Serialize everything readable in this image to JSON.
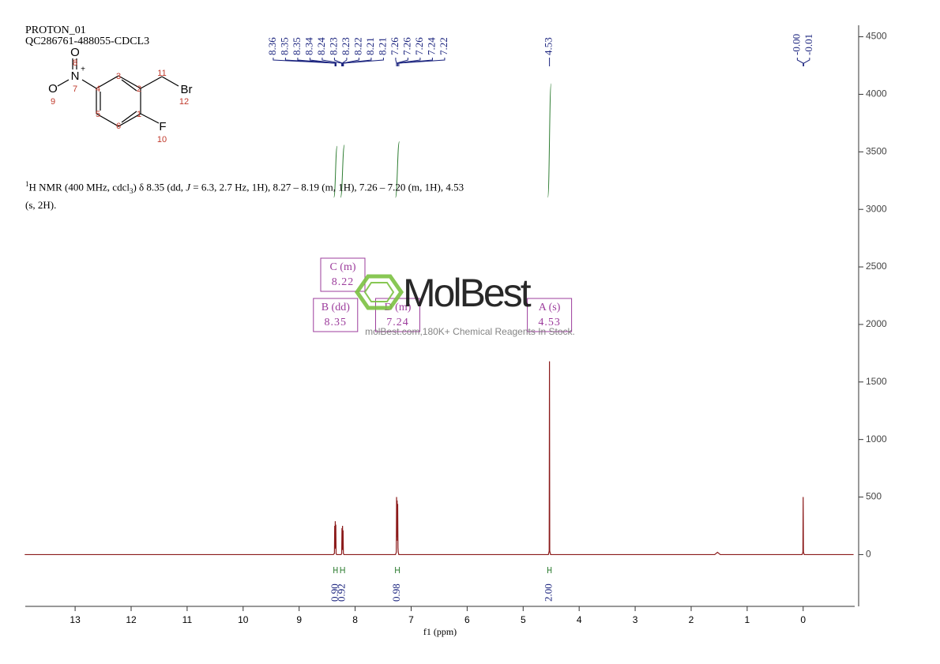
{
  "chart_data": {
    "type": "nmr",
    "title": "PROTON_01",
    "subtitle": "QC286761-488055-CDCL3",
    "description": [
      "1",
      "H NMR (400 MHz, cdcl",
      "3",
      ") δ 8.35 (dd, ",
      "J",
      " = 6.3, 2.7 Hz, 1H), 8.27 – 8.19 (m, 1H), 7.26 – 7.20 (m, 1H), 4.53 (s, 2H)."
    ],
    "x_label": "f1 (ppm)",
    "xlim": [
      13.89,
      -0.92
    ],
    "xticks": [
      13,
      12,
      11,
      10,
      9,
      8,
      7,
      6,
      5,
      4,
      3,
      2,
      1,
      0
    ],
    "ylim": [
      -450,
      4600
    ],
    "yticks": [
      0,
      500,
      1000,
      1500,
      2000,
      2500,
      3000,
      3500,
      4000,
      4500
    ],
    "color": "#8b1a1a",
    "x": [
      13.9,
      8.39,
      8.37,
      8.365,
      8.36,
      8.355,
      8.35,
      8.345,
      8.34,
      8.33,
      8.25,
      8.24,
      8.235,
      8.23,
      8.225,
      8.22,
      8.215,
      8.21,
      8.2,
      7.28,
      7.265,
      7.26,
      7.255,
      7.25,
      7.245,
      7.24,
      7.235,
      7.23,
      7.22,
      4.55,
      4.535,
      4.53,
      4.525,
      4.51,
      1.58,
      1.53,
      1.48,
      0.02,
      0.005,
      0.0,
      -0.005,
      -0.02,
      -0.9
    ],
    "values": [
      0,
      0,
      10,
      250,
      60,
      290,
      50,
      260,
      10,
      0,
      0,
      10,
      230,
      40,
      250,
      40,
      210,
      10,
      0,
      0,
      20,
      500,
      150,
      470,
      120,
      440,
      60,
      20,
      0,
      0,
      30,
      1680,
      30,
      0,
      0,
      20,
      0,
      0,
      20,
      500,
      20,
      0,
      0
    ],
    "peak_labels": [
      8.36,
      8.35,
      8.35,
      8.34,
      8.24,
      8.23,
      8.23,
      8.22,
      8.21,
      8.21,
      7.26,
      7.26,
      7.26,
      7.24,
      7.22,
      4.53,
      {
        "value": 0,
        "label": "-0.00"
      },
      -0.01
    ],
    "integrals": {
      "ranges": [
        [
          8.38,
          8.32
        ],
        [
          8.26,
          8.19
        ],
        [
          7.28,
          7.21
        ],
        [
          4.56,
          4.5
        ]
      ],
      "values": [
        {
          "value": 0.9,
          "label": "0.90"
        },
        0.92,
        0.98,
        {
          "value": 2,
          "label": "2.00"
        }
      ]
    },
    "multiplets": [
      {
        "name": "A (s)",
        "shift": 4.53
      },
      {
        "name": "B (dd)",
        "shift": 8.35
      },
      {
        "name": "C (m)",
        "shift": 8.22
      },
      {
        "name": "D (m)",
        "shift": 7.24
      }
    ],
    "structure": {
      "atoms": [
        "O",
        "N",
        "+",
        "O",
        "Br",
        "F"
      ],
      "numbers": [
        8,
        7,
        9,
        3,
        4,
        2,
        11,
        12,
        5,
        6,
        1,
        10
      ]
    },
    "watermark": {
      "logo": "MolBest",
      "text": "molBest.com,180K+ Chemical Reagents In Stock."
    }
  }
}
